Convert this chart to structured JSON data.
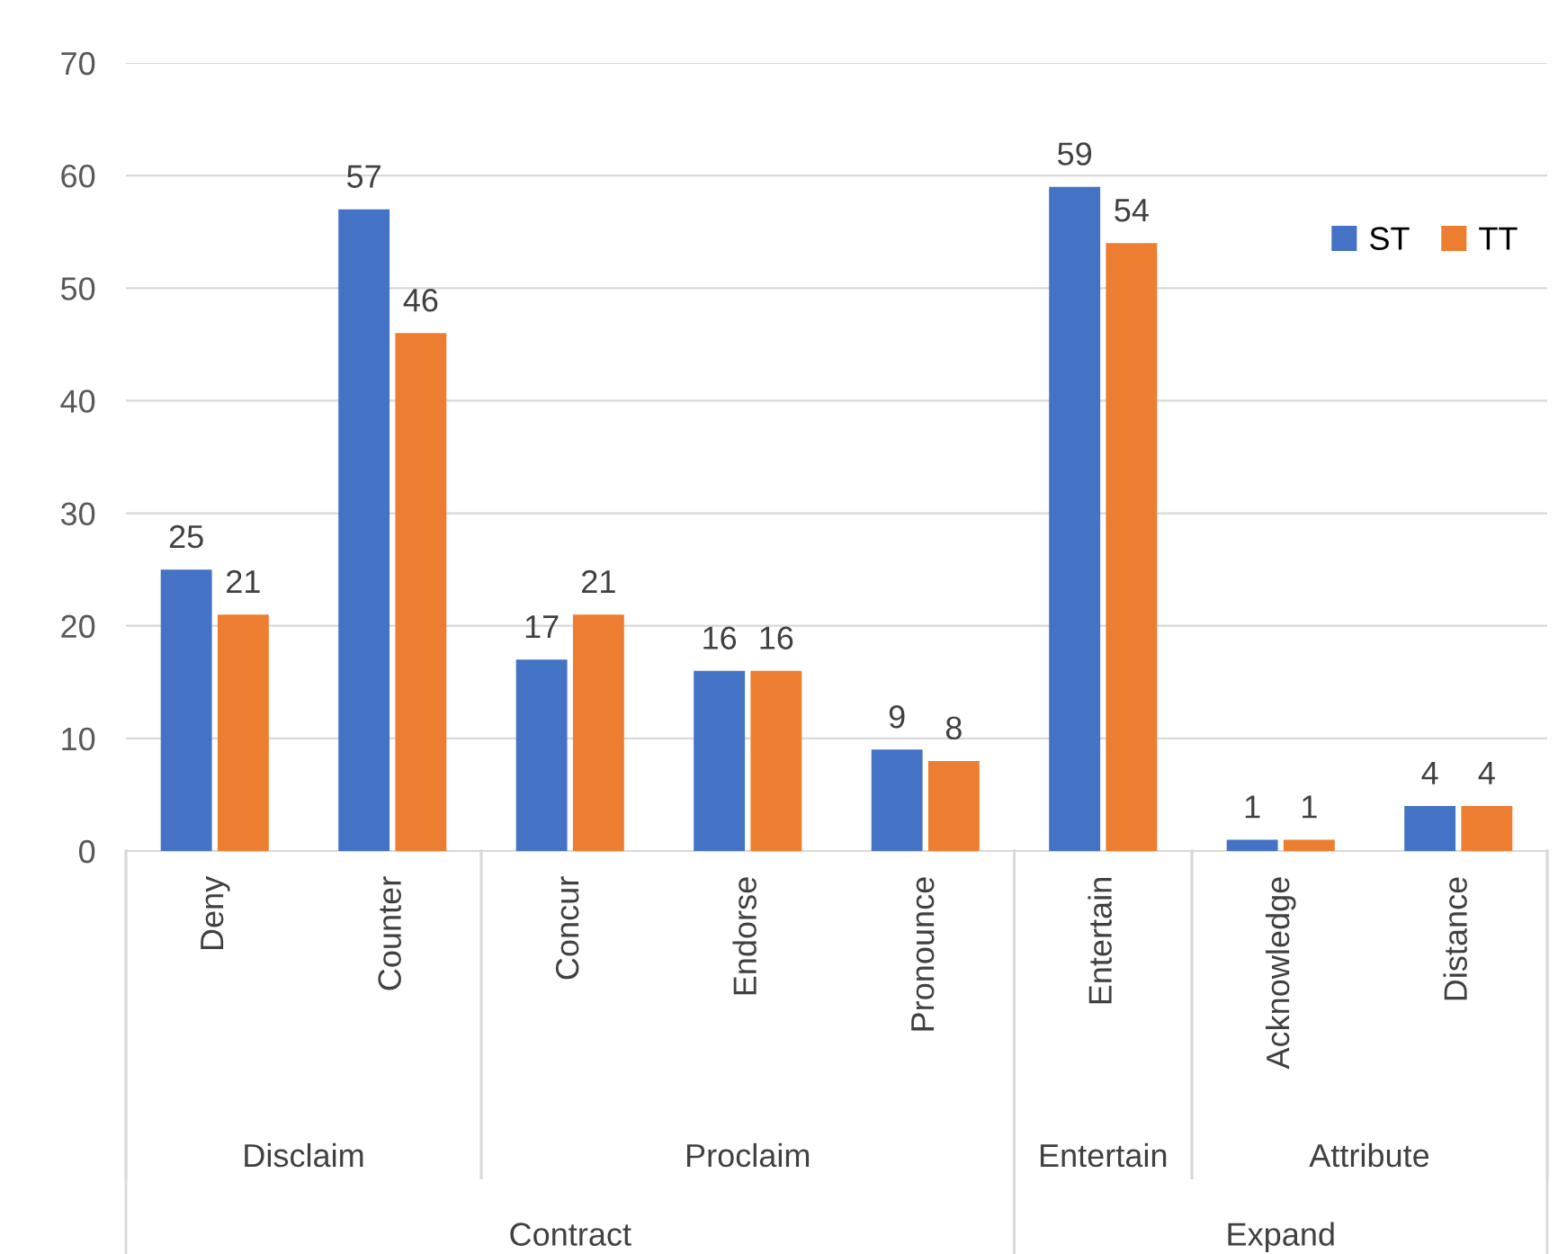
{
  "chart_data": {
    "type": "bar",
    "categories": [
      "Deny",
      "Counter",
      "Concur",
      "Endorse",
      "Pronounce",
      "Entertain",
      "Acknowledge",
      "Distance"
    ],
    "series": [
      {
        "name": "ST",
        "color": "#4472c4",
        "values": [
          25,
          57,
          17,
          16,
          9,
          59,
          1,
          4
        ]
      },
      {
        "name": "TT",
        "color": "#ed7d31",
        "values": [
          21,
          46,
          21,
          16,
          8,
          54,
          1,
          4
        ]
      }
    ],
    "ylim": [
      0,
      70
    ],
    "yticks": [
      0,
      10,
      20,
      30,
      40,
      50,
      60,
      70
    ],
    "grid": "y",
    "legend": "top right",
    "data_labels": true,
    "annotations": [
      "Disclaim",
      "Proclaim",
      "Entertain",
      "Attribute",
      "Contract",
      "Expand"
    ]
  }
}
